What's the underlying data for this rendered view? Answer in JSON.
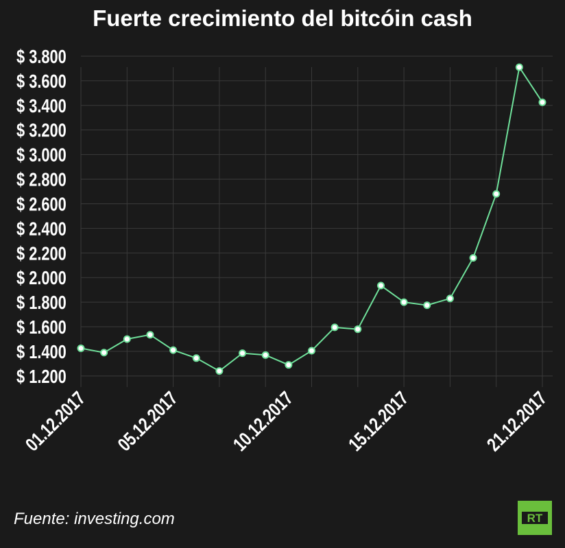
{
  "title": "Fuerte crecimiento del bitcóin cash",
  "source": "Fuente: investing.com",
  "logo_text": "RT",
  "colors": {
    "background": "#1a1a1a",
    "line": "#6fe09a",
    "marker_fill": "#ffffff",
    "grid": "#3a3a3a",
    "text": "#ffffff",
    "logo": "#6abf3c"
  },
  "chart_data": {
    "type": "line",
    "title": "Fuerte crecimiento del bitcóin cash",
    "xlabel": "",
    "ylabel": "",
    "ylim": [
      1100,
      3800
    ],
    "yticks": [
      1200,
      1400,
      1600,
      1800,
      2000,
      2200,
      2400,
      2600,
      2800,
      3000,
      3200,
      3400,
      3600,
      3800
    ],
    "ytick_labels": [
      "$ 1.200",
      "$ 1.400",
      "$ 1.600",
      "$ 1.800",
      "$ 2.000",
      "$ 2.200",
      "$ 2.400",
      "$ 2.600",
      "$ 2.800",
      "$ 3.000",
      "$ 3.200",
      "$ 3.400",
      "$ 3.600",
      "$ 3.800"
    ],
    "x": [
      "01.12.2017",
      "02.12.2017",
      "03.12.2017",
      "04.12.2017",
      "05.12.2017",
      "06.12.2017",
      "07.12.2017",
      "08.12.2017",
      "09.12.2017",
      "10.12.2017",
      "11.12.2017",
      "12.12.2017",
      "13.12.2017",
      "14.12.2017",
      "15.12.2017",
      "16.12.2017",
      "17.12.2017",
      "18.12.2017",
      "19.12.2017",
      "20.12.2017",
      "21.12.2017"
    ],
    "xtick_labels": [
      "01.12.2017",
      "05.12.2017",
      "10.12.2017",
      "15.12.2017",
      "21.12.2017"
    ],
    "xtick_indices": [
      0,
      4,
      9,
      14,
      20
    ],
    "series": [
      {
        "values": [
          1425,
          1390,
          1500,
          1535,
          1410,
          1345,
          1240,
          1385,
          1370,
          1290,
          1405,
          1595,
          1580,
          1935,
          1800,
          1775,
          1830,
          2160,
          2680,
          3710,
          3425
        ]
      }
    ],
    "grid": true
  }
}
